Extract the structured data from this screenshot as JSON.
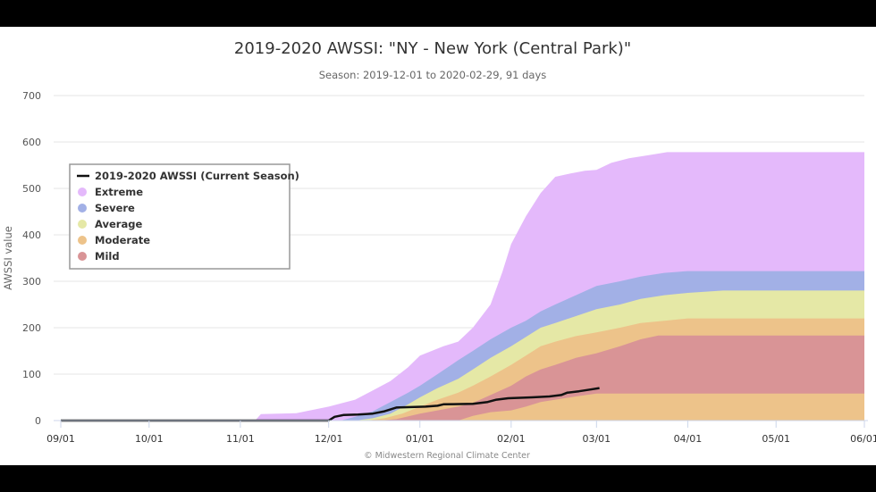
{
  "chart_data": {
    "type": "area",
    "title": "2019-2020 AWSSI: \"NY - New York (Central Park)\"",
    "subtitle": "Season: 2019-12-01 to 2020-02-29, 91 days",
    "ylabel": "AWSSI value",
    "xlabel": "",
    "credit": "© Midwestern Regional Climate Center",
    "ylim": [
      0,
      700
    ],
    "yticks": [
      "0",
      "100",
      "200",
      "300",
      "400",
      "500",
      "600",
      "700"
    ],
    "xlim_days": [
      0,
      273
    ],
    "xticks": [
      {
        "label": "09/01",
        "day": 0
      },
      {
        "label": "10/01",
        "day": 30
      },
      {
        "label": "11/01",
        "day": 61
      },
      {
        "label": "12/01",
        "day": 91
      },
      {
        "label": "01/01",
        "day": 122
      },
      {
        "label": "02/01",
        "day": 153
      },
      {
        "label": "03/01",
        "day": 182
      },
      {
        "label": "04/01",
        "day": 213
      },
      {
        "label": "05/01",
        "day": 243
      },
      {
        "label": "06/01",
        "day": 273
      }
    ],
    "grid": true,
    "legend_position": "top-left",
    "x_units": "days since 09/01",
    "bands": [
      {
        "name": "Extreme",
        "color": "#e4b9fb",
        "top": [
          [
            66,
            0
          ],
          [
            68,
            14
          ],
          [
            80,
            16
          ],
          [
            91,
            30
          ],
          [
            100,
            45
          ],
          [
            106,
            65
          ],
          [
            112,
            85
          ],
          [
            118,
            115
          ],
          [
            122,
            140
          ],
          [
            130,
            160
          ],
          [
            135,
            170
          ],
          [
            140,
            200
          ],
          [
            146,
            250
          ],
          [
            150,
            320
          ],
          [
            153,
            380
          ],
          [
            158,
            440
          ],
          [
            163,
            490
          ],
          [
            168,
            525
          ],
          [
            173,
            532
          ],
          [
            178,
            538
          ],
          [
            182,
            540
          ],
          [
            187,
            555
          ],
          [
            193,
            565
          ],
          [
            200,
            572
          ],
          [
            206,
            578
          ],
          [
            273,
            578
          ]
        ]
      },
      {
        "name": "Severe",
        "color": "#a2b0e6",
        "top": [
          [
            95,
            0
          ],
          [
            100,
            8
          ],
          [
            106,
            20
          ],
          [
            112,
            40
          ],
          [
            118,
            60
          ],
          [
            122,
            75
          ],
          [
            128,
            100
          ],
          [
            135,
            130
          ],
          [
            140,
            150
          ],
          [
            146,
            175
          ],
          [
            153,
            200
          ],
          [
            158,
            215
          ],
          [
            163,
            235
          ],
          [
            168,
            250
          ],
          [
            175,
            270
          ],
          [
            182,
            290
          ],
          [
            190,
            300
          ],
          [
            197,
            310
          ],
          [
            205,
            318
          ],
          [
            213,
            322
          ],
          [
            273,
            322
          ]
        ]
      },
      {
        "name": "Average",
        "color": "#e5e8a6",
        "top": [
          [
            100,
            0
          ],
          [
            106,
            5
          ],
          [
            112,
            15
          ],
          [
            118,
            35
          ],
          [
            122,
            50
          ],
          [
            128,
            70
          ],
          [
            135,
            90
          ],
          [
            140,
            110
          ],
          [
            146,
            135
          ],
          [
            153,
            160
          ],
          [
            158,
            180
          ],
          [
            163,
            200
          ],
          [
            168,
            210
          ],
          [
            175,
            225
          ],
          [
            182,
            240
          ],
          [
            190,
            250
          ],
          [
            197,
            262
          ],
          [
            205,
            270
          ],
          [
            213,
            275
          ],
          [
            225,
            280
          ],
          [
            273,
            280
          ]
        ]
      },
      {
        "name": "Moderate",
        "color": "#edc38a",
        "top": [
          [
            104,
            0
          ],
          [
            110,
            5
          ],
          [
            116,
            15
          ],
          [
            122,
            30
          ],
          [
            128,
            45
          ],
          [
            135,
            60
          ],
          [
            140,
            75
          ],
          [
            146,
            95
          ],
          [
            153,
            120
          ],
          [
            158,
            140
          ],
          [
            163,
            160
          ],
          [
            168,
            170
          ],
          [
            175,
            182
          ],
          [
            182,
            190
          ],
          [
            190,
            200
          ],
          [
            197,
            210
          ],
          [
            205,
            215
          ],
          [
            213,
            220
          ],
          [
            273,
            220
          ]
        ]
      },
      {
        "name": "Mild",
        "color": "#d99496",
        "top": [
          [
            108,
            0
          ],
          [
            114,
            3
          ],
          [
            122,
            15
          ],
          [
            128,
            22
          ],
          [
            135,
            30
          ],
          [
            140,
            38
          ],
          [
            146,
            55
          ],
          [
            153,
            75
          ],
          [
            158,
            95
          ],
          [
            163,
            110
          ],
          [
            168,
            120
          ],
          [
            175,
            135
          ],
          [
            182,
            145
          ],
          [
            190,
            160
          ],
          [
            197,
            175
          ],
          [
            203,
            183
          ],
          [
            273,
            183
          ]
        ],
        "bottom": [
          [
            108,
            0
          ],
          [
            135,
            0
          ],
          [
            140,
            10
          ],
          [
            146,
            18
          ],
          [
            153,
            22
          ],
          [
            158,
            30
          ],
          [
            163,
            40
          ],
          [
            168,
            45
          ],
          [
            175,
            52
          ],
          [
            182,
            58
          ],
          [
            273,
            58
          ]
        ]
      }
    ],
    "series": [
      {
        "name": "2019-2020 AWSSI (Current Season)",
        "color": "#111111",
        "points": [
          [
            0,
            0
          ],
          [
            91,
            0
          ],
          [
            93,
            8
          ],
          [
            96,
            12
          ],
          [
            101,
            13
          ],
          [
            106,
            15
          ],
          [
            110,
            20
          ],
          [
            114,
            28
          ],
          [
            119,
            29
          ],
          [
            124,
            30
          ],
          [
            128,
            32
          ],
          [
            130,
            35
          ],
          [
            140,
            36
          ],
          [
            145,
            40
          ],
          [
            148,
            45
          ],
          [
            152,
            48
          ],
          [
            160,
            50
          ],
          [
            166,
            52
          ],
          [
            170,
            55
          ],
          [
            172,
            60
          ],
          [
            176,
            63
          ],
          [
            180,
            67
          ],
          [
            183,
            70
          ]
        ]
      }
    ],
    "legend": [
      {
        "label": "2019-2020 AWSSI (Current Season)",
        "kind": "line",
        "color": "#111111"
      },
      {
        "label": "Extreme",
        "kind": "dot",
        "color": "#e4b9fb"
      },
      {
        "label": "Severe",
        "kind": "dot",
        "color": "#a2b0e6"
      },
      {
        "label": "Average",
        "kind": "dot",
        "color": "#e5e8a6"
      },
      {
        "label": "Moderate",
        "kind": "dot",
        "color": "#edc38a"
      },
      {
        "label": "Mild",
        "kind": "dot",
        "color": "#d99496"
      }
    ]
  }
}
